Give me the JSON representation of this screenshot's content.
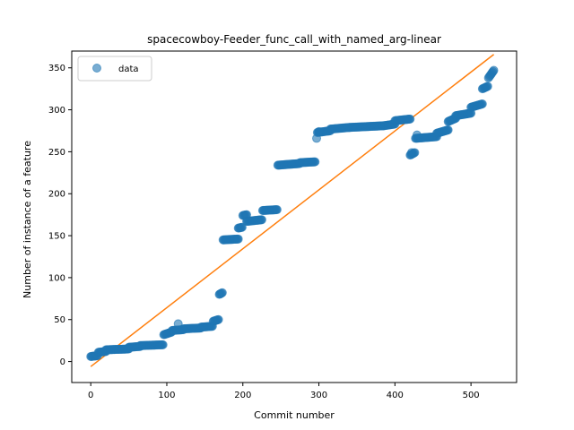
{
  "chart_data": {
    "type": "scatter",
    "title": "spacecowboy-Feeder_func_call_with_named_arg-linear",
    "xlabel": "Commit number",
    "ylabel": "Number of instance of a feature",
    "xlim": [
      -25,
      560
    ],
    "ylim": [
      -25,
      370
    ],
    "xticks": [
      0,
      100,
      200,
      300,
      400,
      500
    ],
    "yticks": [
      0,
      50,
      100,
      150,
      200,
      250,
      300,
      350
    ],
    "grid": false,
    "legend": {
      "placement": "top-left",
      "entries": [
        "data"
      ]
    },
    "colors": {
      "data": "#1f77b4",
      "fit": "#ff7f0e"
    },
    "segments": [
      {
        "x0": 0,
        "x1": 9,
        "y0": 6,
        "y1": 7
      },
      {
        "x0": 10,
        "x1": 20,
        "y0": 11,
        "y1": 12
      },
      {
        "x0": 20,
        "x1": 50,
        "y0": 14,
        "y1": 15
      },
      {
        "x0": 50,
        "x1": 65,
        "y0": 17,
        "y1": 18
      },
      {
        "x0": 65,
        "x1": 95,
        "y0": 19,
        "y1": 20
      },
      {
        "x0": 96,
        "x1": 106,
        "y0": 32,
        "y1": 35
      },
      {
        "x0": 107,
        "x1": 122,
        "y0": 37,
        "y1": 38
      },
      {
        "x0": 122,
        "x1": 145,
        "y0": 39,
        "y1": 40
      },
      {
        "x0": 145,
        "x1": 160,
        "y0": 41,
        "y1": 42
      },
      {
        "x0": 161,
        "x1": 168,
        "y0": 48,
        "y1": 50
      },
      {
        "x0": 169,
        "x1": 173,
        "y0": 80,
        "y1": 82
      },
      {
        "x0": 174,
        "x1": 194,
        "y0": 145,
        "y1": 146
      },
      {
        "x0": 194,
        "x1": 199,
        "y0": 159,
        "y1": 160
      },
      {
        "x0": 200,
        "x1": 205,
        "y0": 174,
        "y1": 175
      },
      {
        "x0": 205,
        "x1": 225,
        "y0": 167,
        "y1": 169
      },
      {
        "x0": 226,
        "x1": 245,
        "y0": 180,
        "y1": 181
      },
      {
        "x0": 246,
        "x1": 275,
        "y0": 234,
        "y1": 236
      },
      {
        "x0": 275,
        "x1": 295,
        "y0": 237,
        "y1": 238
      },
      {
        "x0": 298,
        "x1": 315,
        "y0": 273,
        "y1": 275
      },
      {
        "x0": 315,
        "x1": 340,
        "y0": 277,
        "y1": 279
      },
      {
        "x0": 340,
        "x1": 385,
        "y0": 279,
        "y1": 281
      },
      {
        "x0": 385,
        "x1": 400,
        "y0": 281,
        "y1": 283
      },
      {
        "x0": 400,
        "x1": 420,
        "y0": 287,
        "y1": 289
      },
      {
        "x0": 420,
        "x1": 426,
        "y0": 246,
        "y1": 249
      },
      {
        "x0": 427,
        "x1": 455,
        "y0": 266,
        "y1": 268
      },
      {
        "x0": 455,
        "x1": 470,
        "y0": 272,
        "y1": 276
      },
      {
        "x0": 470,
        "x1": 480,
        "y0": 286,
        "y1": 290
      },
      {
        "x0": 480,
        "x1": 500,
        "y0": 293,
        "y1": 296
      },
      {
        "x0": 500,
        "x1": 515,
        "y0": 303,
        "y1": 307
      },
      {
        "x0": 515,
        "x1": 522,
        "y0": 325,
        "y1": 328
      },
      {
        "x0": 523,
        "x1": 530,
        "y0": 338,
        "y1": 347
      }
    ],
    "outliers": [
      {
        "x": 115,
        "y": 45
      },
      {
        "x": 297,
        "y": 266
      },
      {
        "x": 300,
        "y": 274
      },
      {
        "x": 422,
        "y": 249
      },
      {
        "x": 429,
        "y": 270
      }
    ],
    "fit_line": {
      "x": [
        0,
        530
      ],
      "y": [
        -6,
        366
      ]
    }
  }
}
